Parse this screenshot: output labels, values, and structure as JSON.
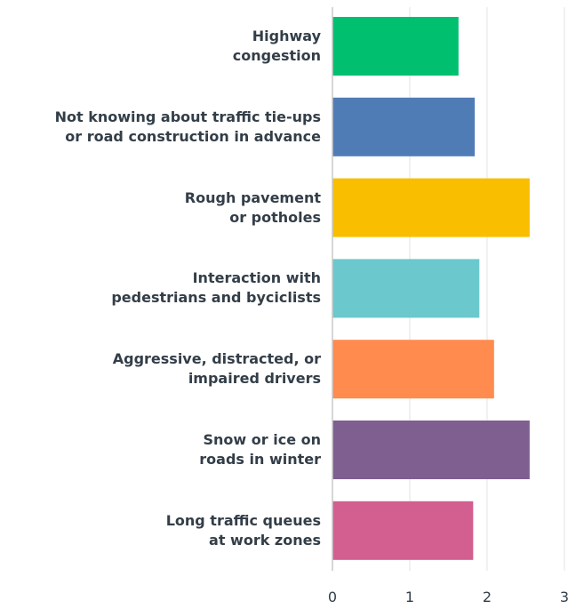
{
  "chart_data": {
    "type": "hbar",
    "categories": [
      "Highway\ncongestion",
      "Not knowing about traffic tie-ups\nor road construction in advance",
      "Rough pavement\nor potholes",
      "Interaction with\npedestrians and byciclists",
      "Aggressive, distracted, or\nimpaired drivers",
      "Snow or ice on\nroads in winter",
      "Long traffic queues\nat work zones"
    ],
    "values": [
      1.63,
      1.84,
      2.55,
      1.9,
      2.09,
      2.55,
      1.82
    ],
    "colors": [
      "#00bf6f",
      "#507cb6",
      "#f9be00",
      "#6bc8cd",
      "#ff8b4f",
      "#7f5f90",
      "#d25f90"
    ],
    "xlim": [
      0,
      3
    ],
    "xticks": [
      0,
      1,
      2,
      3
    ],
    "grid": true
  }
}
